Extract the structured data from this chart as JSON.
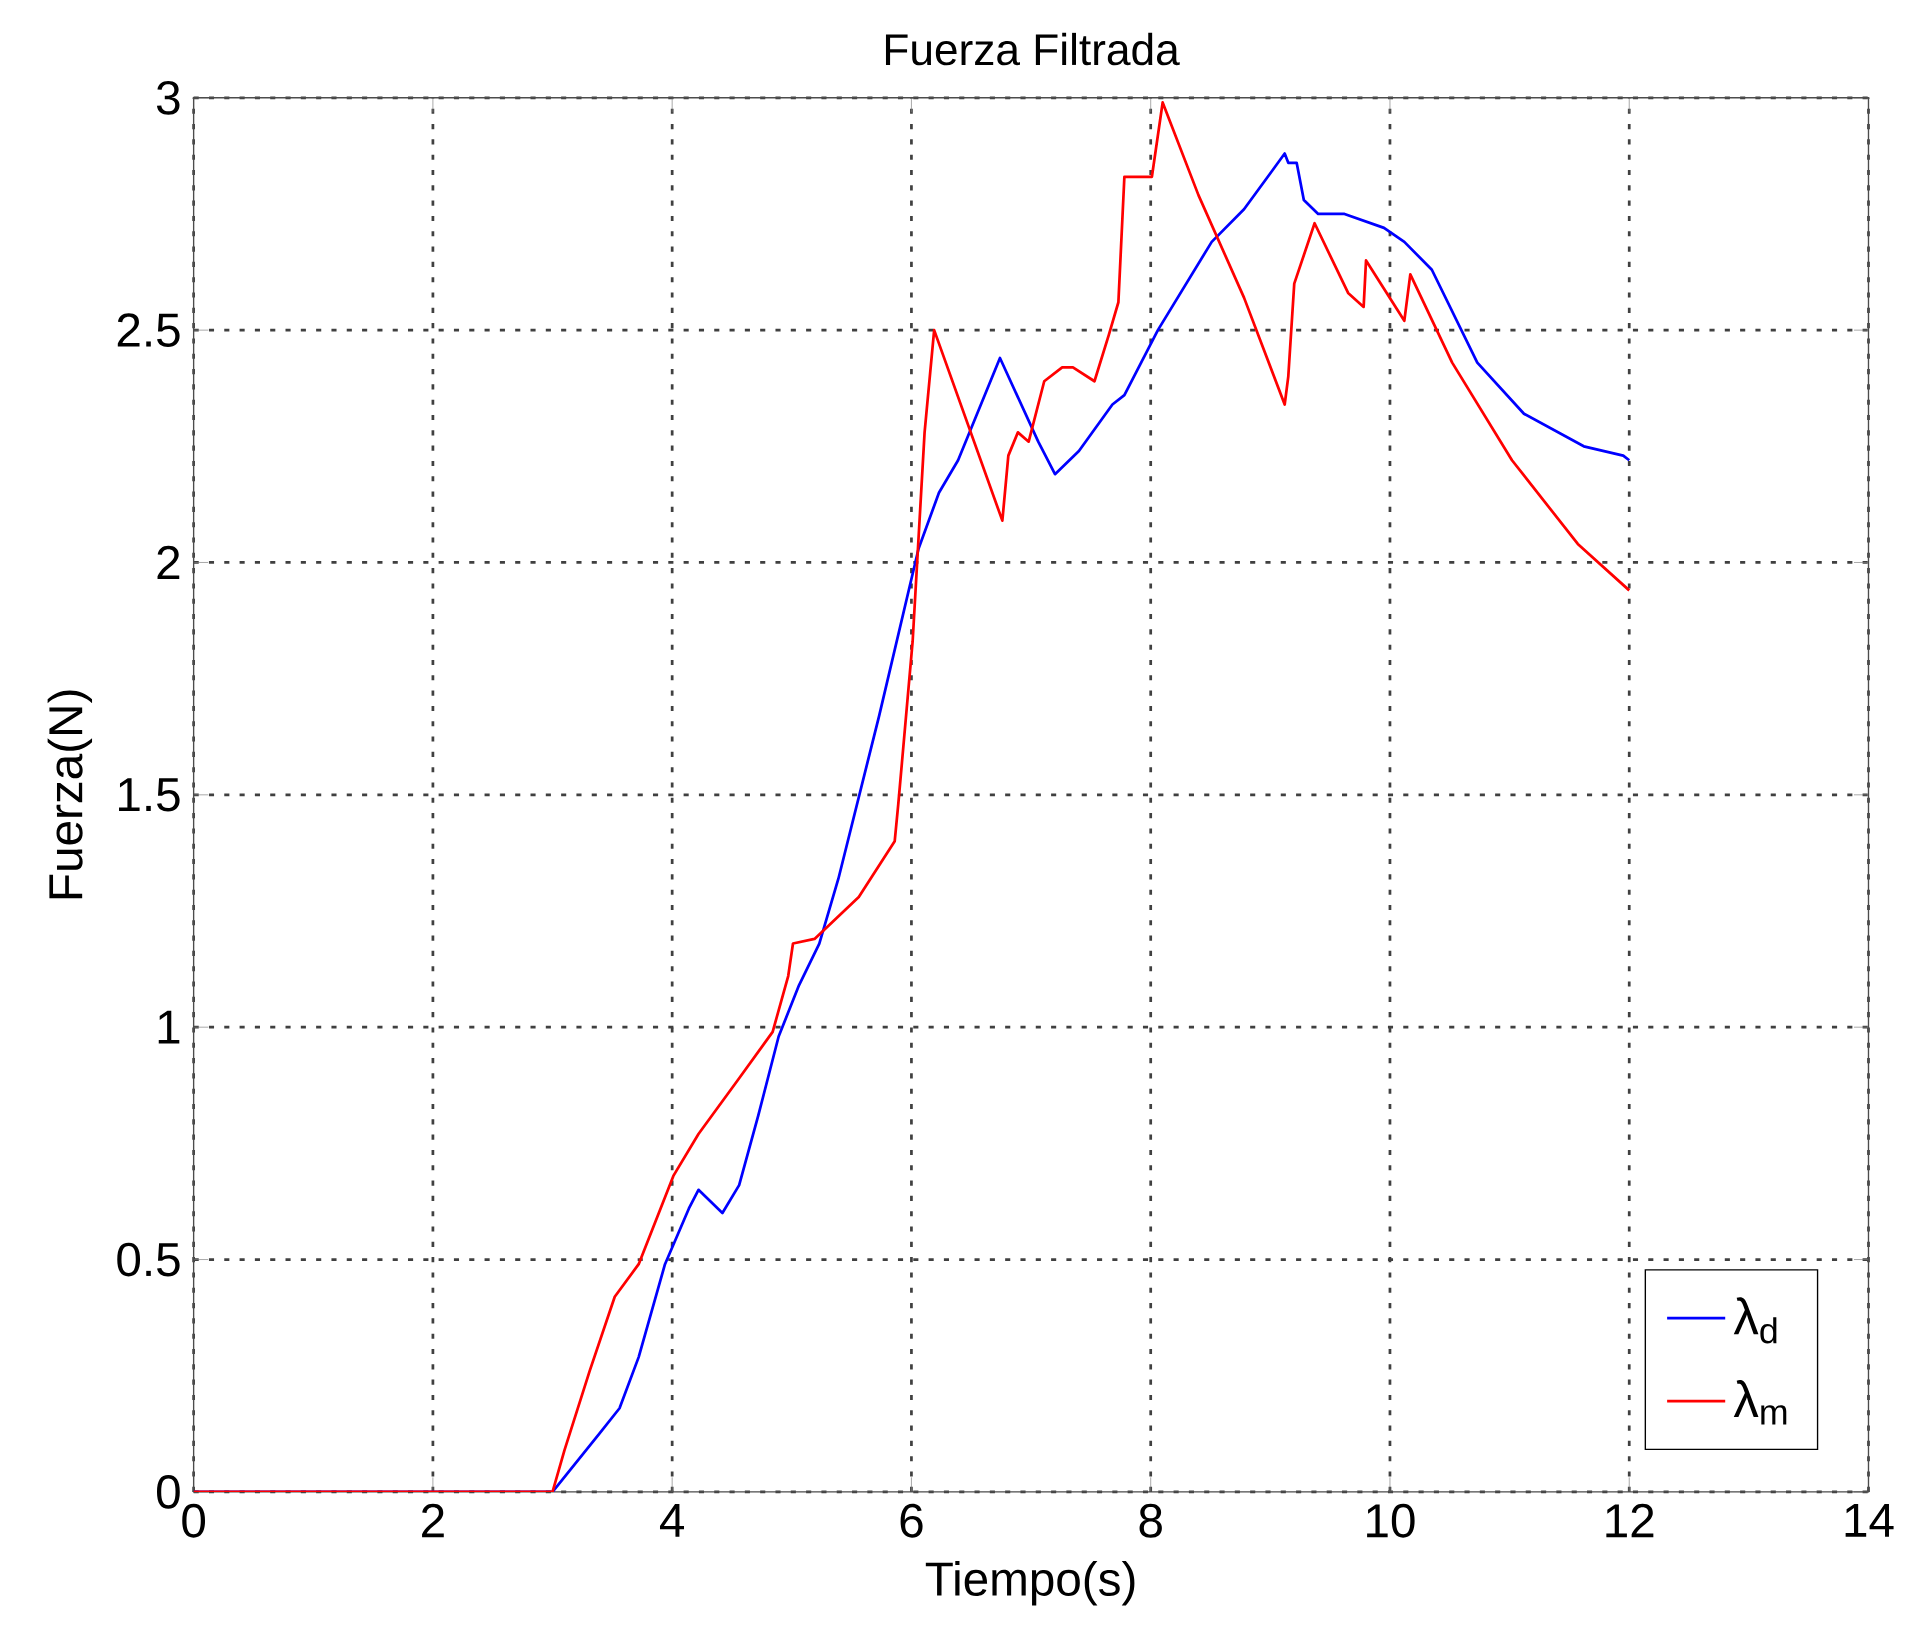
{
  "chart_data": {
    "type": "line",
    "title": "Fuerza Filtrada",
    "xlabel": "Tiempo(s)",
    "ylabel": "Fuerza(N)",
    "xlim": [
      0,
      14
    ],
    "ylim": [
      0,
      3
    ],
    "xticks": [
      0,
      2,
      4,
      6,
      8,
      10,
      12,
      14
    ],
    "yticks": [
      0,
      0.5,
      1,
      1.5,
      2,
      2.5,
      3
    ],
    "grid": true,
    "legend": "bottom right",
    "marker": "none",
    "line_style": "solid",
    "series": [
      {
        "name": "λ$_{d}$",
        "color": "#0000ff",
        "x": [
          0,
          3.0,
          3.39,
          3.56,
          3.72,
          3.94,
          4.14,
          4.22,
          4.42,
          4.56,
          4.72,
          4.89,
          5.06,
          5.23,
          5.39,
          5.73,
          6.06,
          6.23,
          6.39,
          6.74,
          7.06,
          7.2,
          7.4,
          7.68,
          7.78,
          8.06,
          8.51,
          8.78,
          9.12,
          9.15,
          9.22,
          9.28,
          9.4,
          9.62,
          9.95,
          10.12,
          10.35,
          10.73,
          11.12,
          11.62,
          11.95,
          12
        ],
        "values": [
          0,
          0,
          0.125,
          0.18,
          0.29,
          0.49,
          0.61,
          0.65,
          0.6,
          0.66,
          0.81,
          0.98,
          1.09,
          1.18,
          1.32,
          1.67,
          2.03,
          2.15,
          2.22,
          2.44,
          2.26,
          2.19,
          2.24,
          2.34,
          2.36,
          2.5,
          2.69,
          2.76,
          2.88,
          2.86,
          2.86,
          2.78,
          2.75,
          2.75,
          2.72,
          2.69,
          2.63,
          2.43,
          2.32,
          2.25,
          2.23,
          2.22
        ]
      },
      {
        "name": "λ$_{m}$",
        "color": "#ff0000",
        "x": [
          0,
          3.0,
          3.1,
          3.31,
          3.52,
          3.72,
          4.01,
          4.22,
          4.56,
          4.84,
          4.97,
          5.01,
          5.19,
          5.56,
          5.86,
          5.89,
          6.01,
          6.11,
          6.19,
          6.76,
          6.81,
          6.89,
          6.98,
          7.11,
          7.26,
          7.35,
          7.53,
          7.65,
          7.73,
          7.78,
          8.01,
          8.1,
          8.4,
          8.78,
          9.12,
          9.15,
          9.2,
          9.37,
          9.65,
          9.78,
          9.8,
          10.12,
          10.17,
          10.52,
          11.02,
          11.57,
          12
        ],
        "values": [
          0,
          0,
          0.09,
          0.26,
          0.42,
          0.49,
          0.68,
          0.77,
          0.89,
          0.99,
          1.11,
          1.18,
          1.19,
          1.28,
          1.4,
          1.48,
          1.83,
          2.28,
          2.5,
          2.09,
          2.23,
          2.28,
          2.26,
          2.39,
          2.42,
          2.42,
          2.39,
          2.49,
          2.56,
          2.83,
          2.83,
          2.99,
          2.79,
          2.57,
          2.34,
          2.4,
          2.6,
          2.73,
          2.58,
          2.55,
          2.65,
          2.52,
          2.62,
          2.43,
          2.22,
          2.04,
          1.94
        ]
      }
    ]
  }
}
